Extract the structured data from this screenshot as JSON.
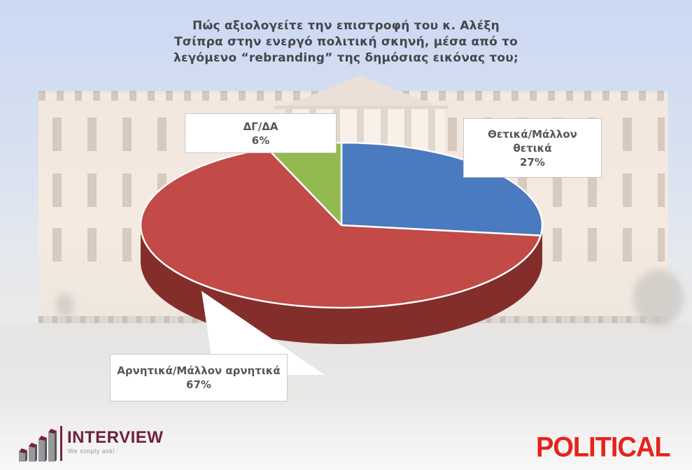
{
  "title": {
    "lines": [
      "Πώς αξιολογείτε την επιστροφή του κ. Αλέξη",
      "Τσίπρα στην ενεργό πολιτική σκηνή, μέσα από το",
      "λεγόμενο “rebranding” της δημόσιας εικόνας του;"
    ]
  },
  "chart_data": {
    "type": "pie",
    "style": "3d",
    "title": "Πώς αξιολογείτε την επιστροφή του κ. Αλέξη Τσίπρα στην ενεργό πολιτική σκηνή, μέσα από το λεγόμενο “rebranding” της δημόσιας εικόνας του;",
    "labels": [
      "Θετικά/Μάλλον θετικά",
      "Αρνητικά/Μάλλον αρνητικά",
      "ΔΓ/ΔΑ"
    ],
    "values": [
      27,
      67,
      6
    ],
    "unit": "%",
    "colors": [
      "#4a7abf",
      "#c24a47",
      "#93b951"
    ],
    "depth_color": "#842e2c",
    "start_angle_deg": 0,
    "direction": "clockwise",
    "legend_position": "callout-labels"
  },
  "callouts": {
    "dk_na": {
      "line1": "ΔΓ/ΔΑ",
      "line2": "6%"
    },
    "positive": {
      "line1": "Θετικά/Μάλλον",
      "line2": "θετικά",
      "line3": "27%"
    },
    "negative": {
      "line1": "Αρνητικά/Μάλλον αρνητικά",
      "line2": "67%"
    }
  },
  "branding": {
    "interview": {
      "name": "INTERVIEW",
      "tagline": "We simply ask!",
      "color": "#6f2040"
    },
    "political": {
      "name": "POLITICAL",
      "color": "#e5231d"
    }
  }
}
